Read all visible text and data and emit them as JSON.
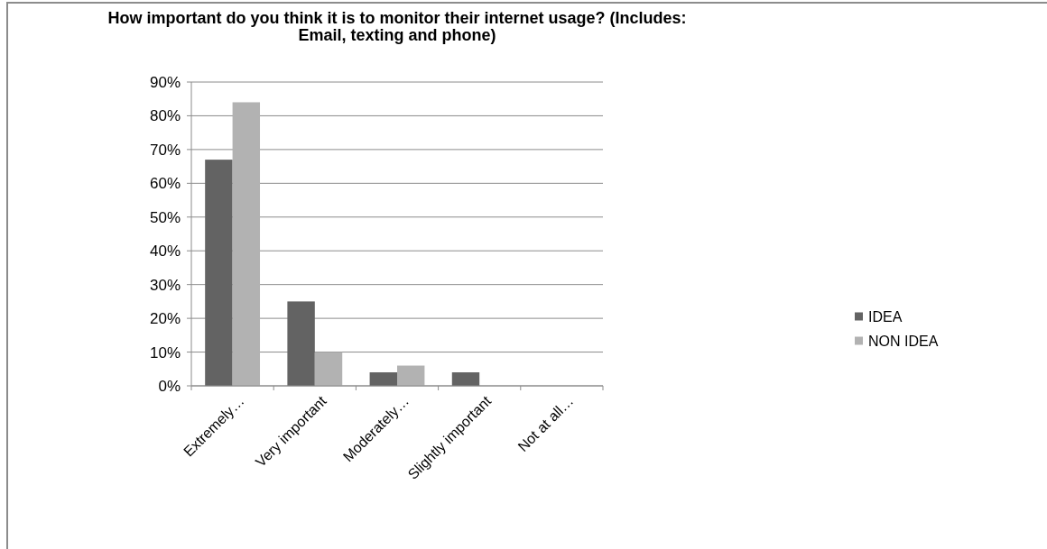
{
  "chart_data": {
    "type": "bar",
    "title": "How important do you think it is to monitor their internet usage? (Includes: Email, texting and phone)",
    "categories": [
      "Extremely…",
      "Very important",
      "Moderately…",
      "Slightly important",
      "Not at all…"
    ],
    "series": [
      {
        "name": "IDEA",
        "color": "#636363",
        "values": [
          67,
          25,
          4,
          4,
          0
        ]
      },
      {
        "name": "NON IDEA",
        "color": "#b2b2b2",
        "values": [
          84,
          10,
          6,
          0,
          0
        ]
      }
    ],
    "ylim": [
      0,
      90
    ],
    "yticks": [
      {
        "value": 0,
        "label": "0%"
      },
      {
        "value": 10,
        "label": "10%"
      },
      {
        "value": 20,
        "label": "20%"
      },
      {
        "value": 30,
        "label": "30%"
      },
      {
        "value": 40,
        "label": "40%"
      },
      {
        "value": 50,
        "label": "50%"
      },
      {
        "value": 60,
        "label": "60%"
      },
      {
        "value": 70,
        "label": "70%"
      },
      {
        "value": 80,
        "label": "80%"
      },
      {
        "value": 90,
        "label": "90%"
      }
    ],
    "grid": "y",
    "legend": "right"
  }
}
